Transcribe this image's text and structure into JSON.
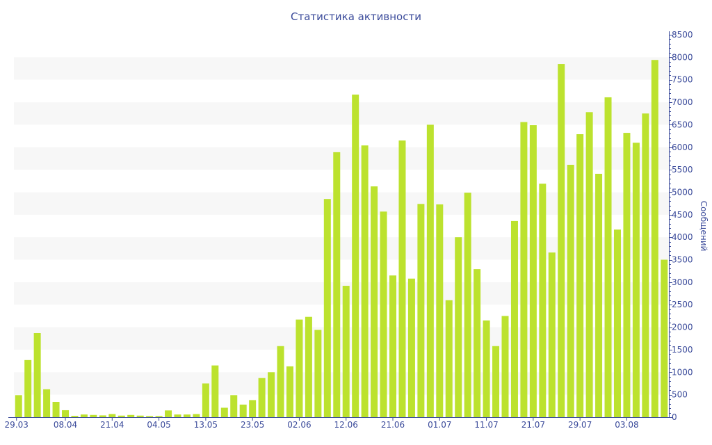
{
  "chart_data": {
    "type": "bar",
    "title": "Статистика активности",
    "xlabel": "",
    "ylabel": "Сообщений",
    "ylim": [
      0,
      8500
    ],
    "y_axis_position": "right",
    "y_ticks": [
      0,
      500,
      1000,
      1500,
      2000,
      2500,
      3000,
      3500,
      4000,
      4500,
      5000,
      5500,
      6000,
      6500,
      7000,
      7500,
      8000,
      8500
    ],
    "x_tick_labels": [
      "29.03",
      "08.04",
      "21.04",
      "04.05",
      "13.05",
      "23.05",
      "02.06",
      "12.06",
      "21.06",
      "01.07",
      "11.07",
      "21.07",
      "29.07",
      "03.08"
    ],
    "x_tick_every_n_bars": 5,
    "grid": "alternating horizontal bands",
    "legend": "none",
    "colors": {
      "bar": "#bce22e",
      "band": "#f7f7f7",
      "axis": "#3a4a9a"
    },
    "values": [
      490,
      1270,
      1870,
      620,
      340,
      155,
      30,
      60,
      50,
      40,
      70,
      35,
      50,
      35,
      25,
      25,
      150,
      60,
      60,
      70,
      750,
      1150,
      210,
      490,
      280,
      380,
      870,
      1000,
      1580,
      1130,
      2170,
      2230,
      1940,
      4850,
      5890,
      2920,
      7170,
      6040,
      5130,
      4570,
      3150,
      6150,
      3080,
      4740,
      6500,
      4730,
      2600,
      4000,
      4990,
      3290,
      2150,
      1580,
      2250,
      4360,
      6560,
      6490,
      5190,
      3660,
      7850,
      5610,
      6290,
      6780,
      5410,
      7110,
      4170,
      6320,
      6100,
      6750,
      7940,
      3500
    ]
  }
}
